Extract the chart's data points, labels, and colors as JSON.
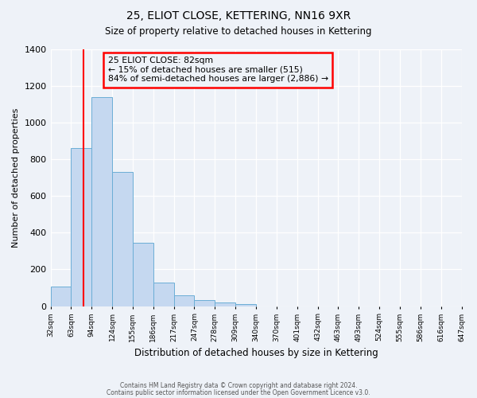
{
  "title": "25, ELIOT CLOSE, KETTERING, NN16 9XR",
  "subtitle": "Size of property relative to detached houses in Kettering",
  "xlabel": "Distribution of detached houses by size in Kettering",
  "ylabel": "Number of detached properties",
  "bar_values": [
    107,
    862,
    1140,
    730,
    345,
    130,
    60,
    32,
    20,
    13,
    0,
    0,
    0,
    0,
    0,
    0,
    0,
    0,
    0,
    0
  ],
  "bar_labels": [
    "32sqm",
    "63sqm",
    "94sqm",
    "124sqm",
    "155sqm",
    "186sqm",
    "217sqm",
    "247sqm",
    "278sqm",
    "309sqm",
    "340sqm",
    "370sqm",
    "401sqm",
    "432sqm",
    "463sqm",
    "493sqm",
    "524sqm",
    "555sqm",
    "586sqm",
    "616sqm",
    "647sqm"
  ],
  "bar_color": "#c5d8f0",
  "bar_edge_color": "#6baed6",
  "vline_color": "red",
  "ylim": [
    0,
    1400
  ],
  "yticks": [
    0,
    200,
    400,
    600,
    800,
    1000,
    1200,
    1400
  ],
  "annotation_title": "25 ELIOT CLOSE: 82sqm",
  "annotation_line1": "← 15% of detached houses are smaller (515)",
  "annotation_line2": "84% of semi-detached houses are larger (2,886) →",
  "annotation_box_color": "red",
  "footnote1": "Contains HM Land Registry data © Crown copyright and database right 2024.",
  "footnote2": "Contains public sector information licensed under the Open Government Licence v3.0.",
  "background_color": "#eef2f8"
}
